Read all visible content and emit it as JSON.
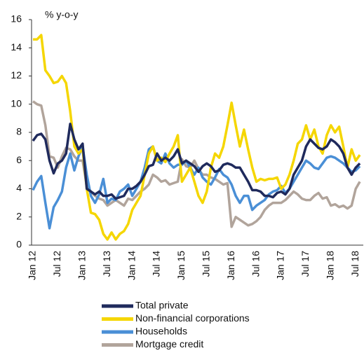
{
  "chart_data": {
    "type": "line",
    "y_label": "% y-o-y",
    "categories": [
      "Jan 12",
      null,
      null,
      null,
      null,
      null,
      "Jul 12",
      null,
      null,
      null,
      null,
      null,
      "Jan 13",
      null,
      null,
      null,
      null,
      null,
      "Jul 13",
      null,
      null,
      null,
      null,
      null,
      "Jan 14",
      null,
      null,
      null,
      null,
      null,
      "Jul 14",
      null,
      null,
      null,
      null,
      null,
      "Jan 15",
      null,
      null,
      null,
      null,
      null,
      "Jul 15",
      null,
      null,
      null,
      null,
      null,
      "Jan 16",
      null,
      null,
      null,
      null,
      null,
      "Jul 16",
      null,
      null,
      null,
      null,
      null,
      "Jan 17",
      null,
      null,
      null,
      null,
      null,
      "Jul 17",
      null,
      null,
      null,
      null,
      null,
      "Jan 18",
      null,
      null,
      null,
      null,
      null,
      "Jul 18",
      null
    ],
    "ylim": [
      0,
      16
    ],
    "yticks": [
      0,
      2,
      4,
      6,
      8,
      10,
      12,
      14,
      16
    ],
    "grid": false,
    "legend": "bottom",
    "series": [
      {
        "name": "Total private",
        "color": "#1f2a5c",
        "values": [
          7.4,
          7.8,
          7.9,
          7.5,
          6.0,
          5.1,
          5.8,
          6.0,
          6.5,
          8.6,
          7.5,
          6.8,
          7.2,
          4.0,
          3.8,
          3.6,
          3.8,
          3.5,
          3.5,
          3.6,
          3.3,
          3.4,
          3.5,
          4.0,
          4.0,
          4.2,
          4.5,
          5.0,
          5.6,
          5.7,
          6.5,
          6.0,
          6.2,
          6.0,
          6.3,
          6.8,
          5.8,
          6.0,
          5.8,
          5.6,
          5.2,
          5.6,
          5.8,
          5.6,
          5.2,
          5.3,
          5.7,
          5.8,
          5.7,
          5.5,
          5.5,
          5.0,
          4.5,
          3.9,
          3.9,
          3.8,
          3.5,
          3.5,
          3.4,
          3.7,
          3.8,
          3.6,
          4.0,
          5.0,
          5.5,
          6.0,
          7.0,
          7.5,
          7.2,
          6.9,
          6.8,
          7.0,
          7.5,
          7.3,
          7.0,
          6.5,
          5.5,
          5.0,
          5.5,
          5.8
        ]
      },
      {
        "name": "Non-financial corporations",
        "color": "#f5d600",
        "values": [
          14.6,
          14.6,
          14.9,
          12.4,
          12.0,
          11.5,
          11.6,
          12.0,
          11.5,
          9.5,
          7.0,
          6.5,
          6.8,
          4.0,
          2.3,
          2.2,
          1.8,
          0.8,
          0.4,
          0.9,
          0.4,
          0.8,
          1.0,
          1.5,
          2.5,
          3.0,
          3.5,
          5.0,
          6.5,
          7.0,
          6.0,
          6.2,
          5.9,
          6.5,
          7.0,
          7.8,
          4.5,
          5.0,
          5.5,
          4.5,
          3.5,
          3.0,
          3.8,
          5.5,
          6.5,
          6.2,
          7.0,
          8.5,
          10.1,
          8.5,
          7.0,
          8.2,
          6.8,
          5.5,
          4.5,
          4.7,
          4.6,
          4.7,
          4.7,
          4.8,
          4.0,
          4.3,
          5.0,
          6.0,
          7.2,
          7.5,
          8.5,
          7.5,
          8.2,
          7.0,
          6.5,
          7.8,
          8.5,
          8.0,
          8.4,
          7.0,
          5.5,
          6.8,
          6.0,
          6.4
        ]
      },
      {
        "name": "Households",
        "color": "#4a8fd6",
        "values": [
          3.9,
          4.5,
          4.9,
          3.0,
          1.2,
          2.7,
          3.2,
          3.8,
          5.5,
          6.5,
          5.3,
          6.3,
          7.0,
          5.0,
          3.5,
          3.0,
          3.6,
          4.7,
          3.0,
          3.3,
          3.2,
          3.8,
          4.0,
          4.3,
          3.5,
          4.0,
          4.5,
          5.5,
          6.8,
          7.0,
          6.0,
          5.8,
          6.5,
          5.8,
          5.5,
          5.7,
          5.7,
          6.0,
          5.5,
          5.0,
          5.5,
          4.8,
          4.5,
          4.3,
          4.8,
          5.4,
          5.0,
          4.8,
          4.3,
          3.5,
          3.0,
          3.5,
          3.5,
          2.5,
          2.8,
          3.0,
          3.2,
          3.6,
          3.8,
          3.9,
          4.2,
          3.7,
          4.0,
          4.5,
          5.0,
          5.5,
          6.0,
          5.8,
          5.5,
          5.4,
          5.8,
          6.2,
          6.3,
          6.2,
          6.0,
          5.8,
          5.5,
          5.2,
          5.3,
          5.6
        ]
      },
      {
        "name": "Mortgage credit",
        "color": "#b1a49b",
        "values": [
          10.2,
          10.0,
          9.9,
          8.5,
          6.3,
          6.2,
          5.5,
          6.3,
          6.9,
          6.8,
          6.3,
          6.0,
          6.0,
          4.2,
          3.8,
          3.5,
          3.3,
          3.2,
          2.8,
          3.0,
          3.2,
          3.0,
          2.8,
          3.3,
          3.2,
          3.5,
          3.8,
          4.0,
          4.3,
          5.0,
          4.8,
          4.5,
          4.6,
          4.3,
          4.4,
          4.5,
          6.1,
          5.6,
          5.5,
          6.0,
          5.4,
          5.0,
          5.0,
          4.8,
          4.7,
          4.5,
          4.3,
          4.4,
          1.3,
          2.0,
          1.8,
          1.6,
          1.4,
          1.5,
          1.7,
          2.0,
          2.5,
          2.8,
          3.0,
          3.0,
          3.0,
          3.2,
          3.5,
          3.8,
          3.6,
          3.3,
          3.2,
          3.2,
          3.5,
          3.7,
          3.3,
          3.4,
          2.8,
          2.9,
          2.7,
          2.8,
          2.6,
          2.8,
          4.0,
          4.5
        ]
      }
    ]
  }
}
